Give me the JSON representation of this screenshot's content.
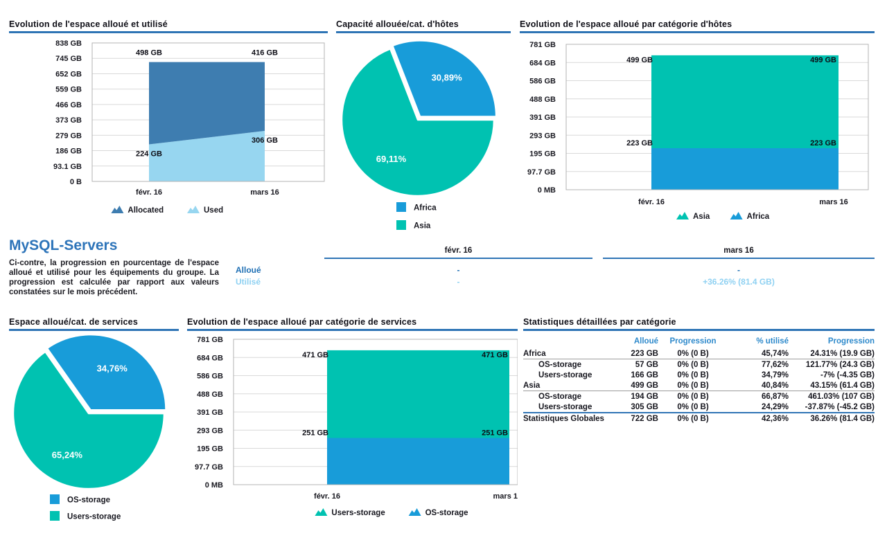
{
  "colors": {
    "accent_bar": "#2E74B5",
    "heading_blue": "#2D74B9",
    "table_header_blue": "#2D89CB",
    "allocated": "#3E7DB0",
    "used": "#97D6F0",
    "blue": "#189CD9",
    "teal": "#00C2B1",
    "alloue_text": "#1E6FB4",
    "utilise_text": "#8FD1F2"
  },
  "chart_data": [
    {
      "id": "allocated-used",
      "type": "area",
      "stacked": true,
      "title": "Evolution de l'espace alloué et utilisé",
      "x": [
        "févr. 16",
        "mars 16"
      ],
      "ymax": 838,
      "yticks": [
        "838 GB",
        "745 GB",
        "652 GB",
        "559 GB",
        "466 GB",
        "373 GB",
        "279 GB",
        "186 GB",
        "93.1 GB",
        "0 B"
      ],
      "series": [
        {
          "name": "Used",
          "color": "used",
          "values": [
            224,
            306
          ],
          "labels": [
            "224 GB",
            "306 GB"
          ]
        },
        {
          "name": "Allocated",
          "color": "allocated",
          "values": [
            498,
            416
          ],
          "labels": [
            "498 GB",
            "416 GB"
          ]
        }
      ],
      "legend": [
        {
          "label": "Allocated",
          "color": "allocated"
        },
        {
          "label": "Used",
          "color": "used"
        }
      ]
    },
    {
      "id": "capacity-hosts",
      "type": "pie",
      "title": "Capacité allouée/cat. d'hôtes",
      "slices": [
        {
          "label": "Africa",
          "pct": 30.89,
          "pct_label": "30,89%",
          "color": "blue",
          "explode": true
        },
        {
          "label": "Asia",
          "pct": 69.11,
          "pct_label": "69,11%",
          "color": "teal",
          "explode": false
        }
      ],
      "legend": [
        {
          "label": "Africa",
          "color": "blue"
        },
        {
          "label": "Asia",
          "color": "teal"
        }
      ]
    },
    {
      "id": "allocated-by-hosts",
      "type": "area",
      "stacked": true,
      "title": "Evolution de l'espace alloué par catégorie d'hôtes",
      "x": [
        "févr. 16",
        "mars 16"
      ],
      "ymax": 781,
      "yticks": [
        "781 GB",
        "684 GB",
        "586 GB",
        "488 GB",
        "391 GB",
        "293 GB",
        "195 GB",
        "97.7 GB",
        "0 MB"
      ],
      "series": [
        {
          "name": "Africa",
          "color": "blue",
          "values": [
            223,
            223
          ],
          "labels": [
            "223 GB",
            "223 GB"
          ]
        },
        {
          "name": "Asia",
          "color": "teal",
          "values": [
            499,
            499
          ],
          "labels": [
            "499 GB",
            "499 GB"
          ]
        }
      ],
      "legend": [
        {
          "label": "Asia",
          "color": "teal"
        },
        {
          "label": "Africa",
          "color": "blue"
        }
      ]
    },
    {
      "id": "allocated-services",
      "type": "pie",
      "title": "Espace alloué/cat. de services",
      "slices": [
        {
          "label": "OS-storage",
          "pct": 34.76,
          "pct_label": "34,76%",
          "color": "blue",
          "explode": true
        },
        {
          "label": "Users-storage",
          "pct": 65.24,
          "pct_label": "65,24%",
          "color": "teal",
          "explode": false
        }
      ],
      "legend": [
        {
          "label": "OS-storage",
          "color": "blue"
        },
        {
          "label": "Users-storage",
          "color": "teal"
        }
      ]
    },
    {
      "id": "allocated-by-services",
      "type": "area",
      "stacked": true,
      "title": "Evolution de l'espace alloué par catégorie de services",
      "x": [
        "févr. 16",
        "mars 1"
      ],
      "ymax": 781,
      "yticks": [
        "781 GB",
        "684 GB",
        "586 GB",
        "488 GB",
        "391 GB",
        "293 GB",
        "195 GB",
        "97.7 GB",
        "0 MB"
      ],
      "series": [
        {
          "name": "OS-storage",
          "color": "blue",
          "values": [
            251,
            251
          ],
          "labels": [
            "251 GB",
            "251 GB"
          ]
        },
        {
          "name": "Users-storage",
          "color": "teal",
          "values": [
            471,
            471
          ],
          "labels": [
            "471 GB",
            "471 GB"
          ]
        }
      ],
      "legend": [
        {
          "label": "Users-storage",
          "color": "teal"
        },
        {
          "label": "OS-storage",
          "color": "blue"
        }
      ]
    }
  ],
  "mysql_section": {
    "heading": "MySQL-Servers",
    "description": "Ci-contre, la progression en pourcentage de l'espace alloué et utilisé pour les équipements du groupe. La progression est calculée par rapport aux valeurs constatées sur le mois précédent.",
    "columns": [
      "févr. 16",
      "mars 16"
    ],
    "rows": [
      {
        "label": "Alloué",
        "tone": "dark",
        "values": [
          "-",
          "-"
        ]
      },
      {
        "label": "Utilisé",
        "tone": "light",
        "values": [
          "-",
          "+36.26% (81.4 GB)"
        ]
      }
    ]
  },
  "stats_table": {
    "title": "Statistiques détaillées par catégorie",
    "columns": [
      "",
      "Alloué",
      "Progression",
      "% utilisé",
      "Progression"
    ],
    "rows": [
      {
        "label": "Africa",
        "indent": false,
        "bold": false,
        "rule_below": true,
        "blue_rule_below": false,
        "cells": [
          "223 GB",
          "0% (0 B)",
          "45,74%",
          "24.31% (19.9 GB)"
        ]
      },
      {
        "label": "OS-storage",
        "indent": true,
        "bold": false,
        "rule_below": false,
        "blue_rule_below": false,
        "cells": [
          "57 GB",
          "0% (0 B)",
          "77,62%",
          "121.77% (24.3 GB)"
        ]
      },
      {
        "label": "Users-storage",
        "indent": true,
        "bold": false,
        "rule_below": false,
        "blue_rule_below": false,
        "cells": [
          "166 GB",
          "0% (0 B)",
          "34,79%",
          "-7% (-4.35 GB)"
        ]
      },
      {
        "label": "Asia",
        "indent": false,
        "bold": false,
        "rule_below": true,
        "blue_rule_below": false,
        "cells": [
          "499 GB",
          "0% (0 B)",
          "40,84%",
          "43.15% (61.4 GB)"
        ]
      },
      {
        "label": "OS-storage",
        "indent": true,
        "bold": false,
        "rule_below": false,
        "blue_rule_below": false,
        "cells": [
          "194 GB",
          "0% (0 B)",
          "66,87%",
          "461.03% (107 GB)"
        ]
      },
      {
        "label": "Users-storage",
        "indent": true,
        "bold": false,
        "rule_below": false,
        "blue_rule_below": true,
        "cells": [
          "305 GB",
          "0% (0 B)",
          "24,29%",
          "-37.87% (-45.2 GB)"
        ]
      },
      {
        "label": "Statistiques Globales",
        "indent": false,
        "bold": true,
        "rule_below": false,
        "blue_rule_below": false,
        "cells": [
          "722 GB",
          "0% (0 B)",
          "42,36%",
          "36.26% (81.4 GB)"
        ]
      }
    ]
  }
}
